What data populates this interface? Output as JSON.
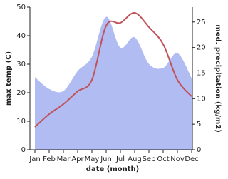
{
  "chart_data": {
    "type": "line-area",
    "categories": [
      "Jan",
      "Feb",
      "Mar",
      "Apr",
      "May",
      "Jun",
      "Jul",
      "Aug",
      "Sep",
      "Oct",
      "Nov",
      "Dec"
    ],
    "xlabel": "date (month)",
    "ylabel": "max temp (C)",
    "y2label": "med. precipitation (kg/m2)",
    "ylim": [
      0,
      50
    ],
    "yticks": [
      0,
      10,
      20,
      30,
      40,
      50
    ],
    "y2lim": [
      0,
      27.9
    ],
    "y2ticks": [
      0,
      5,
      10,
      15,
      20,
      25
    ],
    "series": [
      {
        "name": "med. precipitation",
        "axis": "y2",
        "kind": "area",
        "color": "#b0bcf2",
        "values": [
          14.2,
          11.9,
          11.5,
          15.4,
          18.2,
          26,
          20,
          22,
          16.8,
          16,
          18.9,
          14
        ]
      },
      {
        "name": "max temp",
        "kind": "line",
        "color": "#c0525a",
        "values": [
          8,
          12.5,
          16,
          20.5,
          24.5,
          43.5,
          44.5,
          48,
          43,
          37,
          24.5,
          18.7
        ]
      }
    ]
  }
}
